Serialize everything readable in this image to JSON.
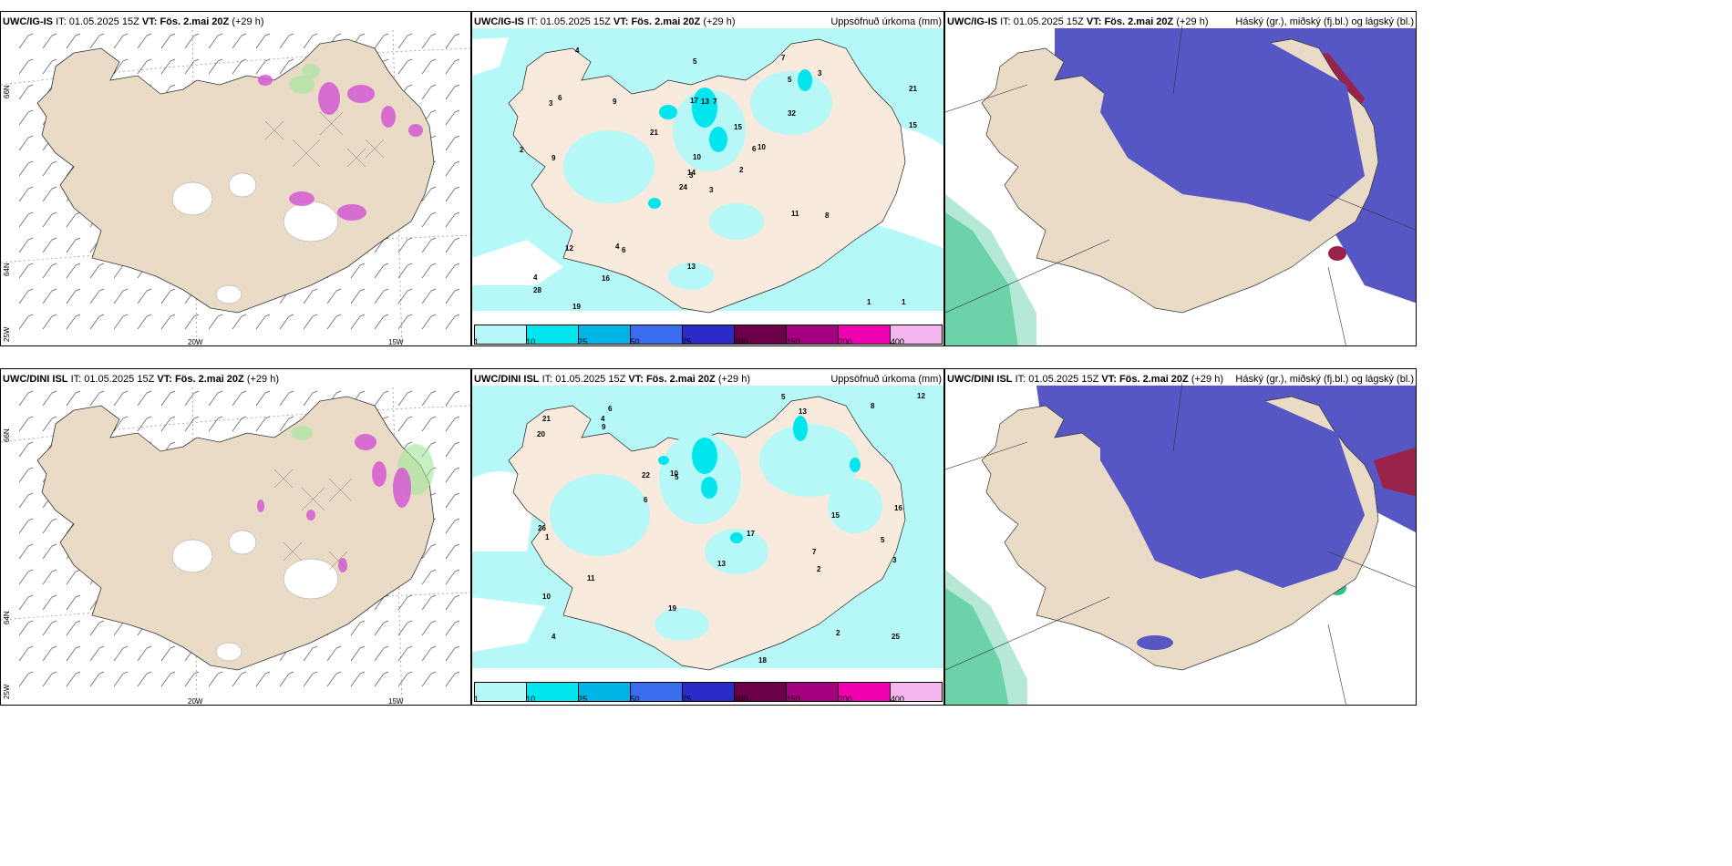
{
  "rows": [
    {
      "model": "UWC/IG-IS",
      "it_label": "IT:",
      "it_value": "01.05.2025 15Z",
      "vt_label": "VT:",
      "vt_value": "Fös. 2.mai 20Z",
      "lead": "(+29 h)"
    },
    {
      "model": "UWC/DINI ISL",
      "it_label": "IT:",
      "it_value": "01.05.2025 15Z",
      "vt_label": "VT:",
      "vt_value": "Fös. 2.mai 20Z",
      "lead": "(+29 h)"
    }
  ],
  "precip_title": "Uppsöfnuð úrkoma (mm)",
  "cloud_title": "Háský (gr.), miðský (fj.bl.) og lágský (bl.)",
  "legend": {
    "colors": [
      "#b6f7f7",
      "#00e5ee",
      "#00b4e6",
      "#3a6cf0",
      "#2b2bc9",
      "#6b0048",
      "#a4007f",
      "#ee00b0",
      "#f5b5ee"
    ],
    "labels": [
      "1",
      "10",
      "25",
      "50",
      "75",
      "100",
      "150",
      "200",
      "400"
    ]
  },
  "axis": {
    "lat_66": "66N",
    "lat_64": "64N",
    "lon_25": "25W",
    "lon_20": "20W",
    "lon_15": "15W"
  },
  "precip_numbers_top": [
    "3",
    "3",
    "3",
    "4",
    "6",
    "6",
    "7",
    "7",
    "5",
    "2",
    "4",
    "1",
    "9",
    "21",
    "24",
    "32",
    "19",
    "17",
    "15",
    "12",
    "21",
    "28",
    "16",
    "13",
    "10",
    "8",
    "6",
    "5",
    "2",
    "11",
    "15",
    "14",
    "13",
    "10",
    "9",
    "3",
    "4",
    "1"
  ],
  "precip_numbers_bottom": [
    "7",
    "5",
    "4",
    "6",
    "5",
    "2",
    "10",
    "13",
    "22",
    "18",
    "20",
    "26",
    "21",
    "25",
    "19",
    "16",
    "13",
    "17",
    "10",
    "11",
    "12",
    "8",
    "6",
    "3",
    "5",
    "4",
    "2",
    "1",
    "9",
    "15"
  ],
  "colors": {
    "land": "#eadbc6",
    "sea": "#ffffff",
    "precip_light": "#b6f7f7",
    "precip_mid": "#00e5ee",
    "cloud_high": "#5656c4",
    "cloud_mid": "#99224a",
    "cloud_low": "#2fbf86",
    "magenta": "#d45ad4"
  }
}
